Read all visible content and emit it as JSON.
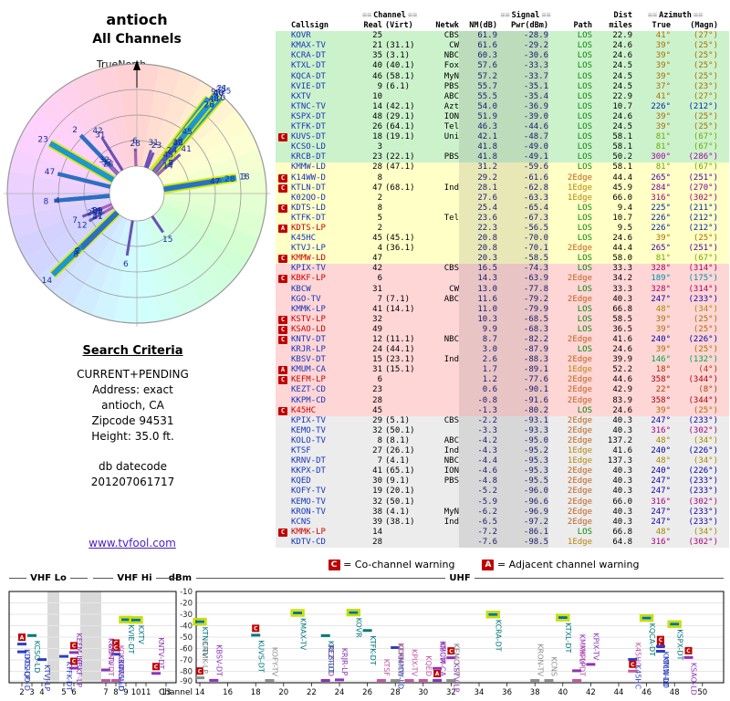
{
  "header": {
    "title": "antioch",
    "subtitle": "All Channels"
  },
  "radar": {
    "north_label": "TrueNorth"
  },
  "criteria": {
    "heading": "Search Criteria",
    "lines": [
      "CURRENT+PENDING",
      "Address: exact",
      "antioch, CA",
      "Zipcode 94531",
      "Height: 35.0 ft."
    ],
    "db_label": "db datecode",
    "db_datecode": "201207061717"
  },
  "footer_link": "www.tvfool.com",
  "table": {
    "groups": {
      "channel": "Channel",
      "signal": "Signal",
      "dist": "Dist",
      "azimuth": "Azimuth"
    },
    "cols": [
      "Callsign",
      "Real",
      "(Virt)",
      "Netwk",
      "NM(dB)",
      "Pwr(dBm)",
      "Path",
      "miles",
      "True",
      "(Magn)"
    ]
  },
  "legend": {
    "c_label": "C",
    "c_text": "= Co-channel warning",
    "a_label": "A",
    "a_text": "= Adjacent channel warning"
  },
  "chart": {
    "ylabel": "dBm",
    "xlabel": "Channel",
    "bands": [
      "VHF Lo",
      "VHF Hi",
      "UHF"
    ],
    "yticks": [
      -10,
      -20,
      -30,
      -40,
      -50,
      -60,
      -70,
      -80,
      -90
    ],
    "vhf_ticks": [
      2,
      3,
      4,
      5,
      6,
      7,
      8,
      9,
      10,
      11,
      13
    ],
    "uhf_ticks": [
      14,
      16,
      18,
      20,
      22,
      24,
      26,
      28,
      30,
      32,
      34,
      36,
      38,
      40,
      42,
      44,
      46,
      48,
      50
    ]
  },
  "chart_data": {
    "type": "table",
    "title": "antioch - All Channels",
    "columns": [
      "Callsign",
      "Real",
      "(Virt)",
      "Netwk",
      "NM(dB)",
      "Pwr(dBm)",
      "Path",
      "miles",
      "True",
      "(Magn)"
    ],
    "stations": [
      {
        "cs": "KOVR",
        "re": "25",
        "vi": "",
        "ne": "CBS",
        "nm": 61.9,
        "pw": -28.9,
        "pa": "LOS",
        "mi": "22.9",
        "at": 41,
        "am": 27,
        "fl": "",
        "wr": false
      },
      {
        "cs": "KMAX-TV",
        "re": "21",
        "vi": "(31.1)",
        "ne": "CW",
        "nm": 61.6,
        "pw": -29.2,
        "pa": "LOS",
        "mi": "24.6",
        "at": 39,
        "am": 25,
        "fl": "",
        "wr": false
      },
      {
        "cs": "KCRA-DT",
        "re": "35",
        "vi": "(3.1)",
        "ne": "NBC",
        "nm": 60.3,
        "pw": -30.6,
        "pa": "LOS",
        "mi": "24.6",
        "at": 39,
        "am": 25,
        "fl": "",
        "wr": false
      },
      {
        "cs": "KTXL-DT",
        "re": "40",
        "vi": "(40.1)",
        "ne": "Fox",
        "nm": 57.6,
        "pw": -33.3,
        "pa": "LOS",
        "mi": "24.5",
        "at": 39,
        "am": 25,
        "fl": "",
        "wr": false
      },
      {
        "cs": "KQCA-DT",
        "re": "46",
        "vi": "(58.1)",
        "ne": "MyN",
        "nm": 57.2,
        "pw": -33.7,
        "pa": "LOS",
        "mi": "24.5",
        "at": 39,
        "am": 25,
        "fl": "",
        "wr": false
      },
      {
        "cs": "KVIE-DT",
        "re": "9",
        "vi": "(6.1)",
        "ne": "PBS",
        "nm": 55.7,
        "pw": -35.1,
        "pa": "LOS",
        "mi": "24.5",
        "at": 37,
        "am": 23,
        "fl": "",
        "wr": false
      },
      {
        "cs": "KXTV",
        "re": "10",
        "vi": "",
        "ne": "ABC",
        "nm": 55.5,
        "pw": -35.4,
        "pa": "LOS",
        "mi": "22.9",
        "at": 41,
        "am": 27,
        "fl": "",
        "wr": false
      },
      {
        "cs": "KTNC-TV",
        "re": "14",
        "vi": "(42.1)",
        "ne": "Azt",
        "nm": 54.0,
        "pw": -36.9,
        "pa": "LOS",
        "mi": "10.7",
        "at": 226,
        "am": 212,
        "fl": "",
        "wr": false
      },
      {
        "cs": "KSPX-DT",
        "re": "48",
        "vi": "(29.1)",
        "ne": "ION",
        "nm": 51.9,
        "pw": -39.0,
        "pa": "LOS",
        "mi": "24.6",
        "at": 39,
        "am": 25,
        "fl": "",
        "wr": false
      },
      {
        "cs": "KTFK-DT",
        "re": "26",
        "vi": "(64.1)",
        "ne": "Tel",
        "nm": 46.3,
        "pw": -44.6,
        "pa": "LOS",
        "mi": "24.5",
        "at": 39,
        "am": 25,
        "fl": "",
        "wr": false
      },
      {
        "cs": "KUVS-DT",
        "re": "18",
        "vi": "(19.1)",
        "ne": "Uni",
        "nm": 42.1,
        "pw": -48.7,
        "pa": "LOS",
        "mi": "58.1",
        "at": 81,
        "am": 67,
        "fl": "C",
        "wr": false
      },
      {
        "cs": "KCSO-LD",
        "re": "3",
        "vi": "",
        "ne": "",
        "nm": 41.8,
        "pw": -49.0,
        "pa": "LOS",
        "mi": "58.1",
        "at": 81,
        "am": 67,
        "fl": "",
        "wr": false
      },
      {
        "cs": "KRCB-DT",
        "re": "23",
        "vi": "(22.1)",
        "ne": "PBS",
        "nm": 41.8,
        "pw": -49.1,
        "pa": "LOS",
        "mi": "50.2",
        "at": 300,
        "am": 286,
        "fl": "",
        "wr": false
      },
      {
        "cs": "KMMW-LD",
        "re": "28",
        "vi": "(47.1)",
        "ne": "",
        "nm": 31.2,
        "pw": -59.6,
        "pa": "LOS",
        "mi": "58.1",
        "at": 81,
        "am": 67,
        "fl": "",
        "wr": false
      },
      {
        "cs": "K14WW-D",
        "re": "8",
        "vi": "",
        "ne": "",
        "nm": 29.2,
        "pw": -61.6,
        "pa": "2Edge",
        "mi": "44.4",
        "at": 265,
        "am": 251,
        "fl": "C",
        "wr": false
      },
      {
        "cs": "KTLN-DT",
        "re": "47",
        "vi": "(68.1)",
        "ne": "Ind",
        "nm": 28.1,
        "pw": -62.8,
        "pa": "1Edge",
        "mi": "45.9",
        "at": 284,
        "am": 270,
        "fl": "C",
        "wr": false
      },
      {
        "cs": "K02QO-D",
        "re": "2",
        "vi": "",
        "ne": "",
        "nm": 27.6,
        "pw": -63.3,
        "pa": "1Edge",
        "mi": "66.0",
        "at": 316,
        "am": 302,
        "fl": "",
        "wr": false
      },
      {
        "cs": "KDTS-LD",
        "re": "8",
        "vi": "",
        "ne": "",
        "nm": 25.4,
        "pw": -65.4,
        "pa": "LOS",
        "mi": "9.4",
        "at": 225,
        "am": 211,
        "fl": "C",
        "wr": false
      },
      {
        "cs": "KTFK-DT",
        "re": "5",
        "vi": "",
        "ne": "Tel",
        "nm": 23.6,
        "pw": -67.3,
        "pa": "LOS",
        "mi": "10.7",
        "at": 226,
        "am": 212,
        "fl": "",
        "wr": false
      },
      {
        "cs": "KDTS-LP",
        "re": "2",
        "vi": "",
        "ne": "",
        "nm": 22.3,
        "pw": -56.5,
        "pa": "LOS",
        "mi": "9.5",
        "at": 226,
        "am": 212,
        "fl": "A",
        "wr": true
      },
      {
        "cs": "K45HC",
        "re": "45",
        "vi": "(45.1)",
        "ne": "",
        "nm": 20.8,
        "pw": -70.0,
        "pa": "LOS",
        "mi": "24.6",
        "at": 39,
        "am": 25,
        "fl": "",
        "wr": false
      },
      {
        "cs": "KTVJ-LP",
        "re": "4",
        "vi": "(36.1)",
        "ne": "",
        "nm": 20.8,
        "pw": -70.1,
        "pa": "2Edge",
        "mi": "44.4",
        "at": 265,
        "am": 251,
        "fl": "",
        "wr": false
      },
      {
        "cs": "KMMW-LD",
        "re": "47",
        "vi": "",
        "ne": "",
        "nm": 20.3,
        "pw": -58.5,
        "pa": "LOS",
        "mi": "58.0",
        "at": 81,
        "am": 67,
        "fl": "C",
        "wr": true
      },
      {
        "cs": "KPIX-TV",
        "re": "42",
        "vi": "",
        "ne": "CBS",
        "nm": 16.5,
        "pw": -74.3,
        "pa": "LOS",
        "mi": "33.3",
        "at": 328,
        "am": 314,
        "fl": "",
        "wr": false
      },
      {
        "cs": "KBKF-LP",
        "re": "6",
        "vi": "",
        "ne": "",
        "nm": 14.3,
        "pw": -63.9,
        "pa": "2Edge",
        "mi": "34.2",
        "at": 189,
        "am": 175,
        "fl": "C",
        "wr": true
      },
      {
        "cs": "KBCW",
        "re": "31",
        "vi": "",
        "ne": "CW",
        "nm": 13.0,
        "pw": -77.8,
        "pa": "LOS",
        "mi": "33.3",
        "at": 328,
        "am": 314,
        "fl": "",
        "wr": false
      },
      {
        "cs": "KGO-TV",
        "re": "7",
        "vi": "(7.1)",
        "ne": "ABC",
        "nm": 11.6,
        "pw": -79.2,
        "pa": "2Edge",
        "mi": "40.3",
        "at": 247,
        "am": 233,
        "fl": "",
        "wr": false
      },
      {
        "cs": "KMMK-LP",
        "re": "41",
        "vi": "(14.1)",
        "ne": "",
        "nm": 11.0,
        "pw": -79.9,
        "pa": "LOS",
        "mi": "66.8",
        "at": 48,
        "am": 34,
        "fl": "",
        "wr": false
      },
      {
        "cs": "KSTV-LP",
        "re": "32",
        "vi": "",
        "ne": "",
        "nm": 10.3,
        "pw": -68.5,
        "pa": "LOS",
        "mi": "58.5",
        "at": 39,
        "am": 25,
        "fl": "C",
        "wr": true
      },
      {
        "cs": "KSAO-LD",
        "re": "49",
        "vi": "",
        "ne": "",
        "nm": 9.9,
        "pw": -68.3,
        "pa": "LOS",
        "mi": "36.5",
        "at": 39,
        "am": 25,
        "fl": "C",
        "wr": true
      },
      {
        "cs": "KNTV-DT",
        "re": "12",
        "vi": "(11.1)",
        "ne": "NBC",
        "nm": 8.7,
        "pw": -82.2,
        "pa": "2Edge",
        "mi": "41.6",
        "at": 240,
        "am": 226,
        "fl": "C",
        "wr": false
      },
      {
        "cs": "KRJR-LP",
        "re": "24",
        "vi": "(44.1)",
        "ne": "",
        "nm": 3.0,
        "pw": -87.9,
        "pa": "LOS",
        "mi": "24.6",
        "at": 39,
        "am": 25,
        "fl": "",
        "wr": false
      },
      {
        "cs": "KBSV-DT",
        "re": "15",
        "vi": "(23.1)",
        "ne": "Ind",
        "nm": 2.6,
        "pw": -88.3,
        "pa": "2Edge",
        "mi": "39.9",
        "at": 146,
        "am": 132,
        "fl": "",
        "wr": false
      },
      {
        "cs": "KMUM-CA",
        "re": "31",
        "vi": "(15.1)",
        "ne": "",
        "nm": 1.7,
        "pw": -89.1,
        "pa": "1Edge",
        "mi": "52.2",
        "at": 18,
        "am": 4,
        "fl": "A",
        "wr": false
      },
      {
        "cs": "KEFM-LP",
        "re": "6",
        "vi": "",
        "ne": "",
        "nm": 1.2,
        "pw": -77.6,
        "pa": "2Edge",
        "mi": "44.6",
        "at": 358,
        "am": 344,
        "fl": "C",
        "wr": true
      },
      {
        "cs": "KEZT-CD",
        "re": "23",
        "vi": "",
        "ne": "",
        "nm": 0.6,
        "pw": -90.1,
        "pa": "2Edge",
        "mi": "42.9",
        "at": 22,
        "am": 8,
        "fl": "",
        "wr": false
      },
      {
        "cs": "KKPM-CD",
        "re": "28",
        "vi": "",
        "ne": "",
        "nm": -0.8,
        "pw": -91.6,
        "pa": "2Edge",
        "mi": "83.9",
        "at": 358,
        "am": 344,
        "fl": "",
        "wr": false
      },
      {
        "cs": "K45HC",
        "re": "45",
        "vi": "",
        "ne": "",
        "nm": -1.3,
        "pw": -80.2,
        "pa": "LOS",
        "mi": "24.6",
        "at": 39,
        "am": 25,
        "fl": "C",
        "wr": true
      },
      {
        "cs": "KPIX-TV",
        "re": "29",
        "vi": "(5.1)",
        "ne": "CBS",
        "nm": -2.2,
        "pw": -93.1,
        "pa": "2Edge",
        "mi": "40.3",
        "at": 247,
        "am": 233,
        "fl": "",
        "wr": false
      },
      {
        "cs": "KEMO-TV",
        "re": "32",
        "vi": "(50.1)",
        "ne": "",
        "nm": -3.3,
        "pw": -93.3,
        "pa": "2Edge",
        "mi": "40.3",
        "at": 316,
        "am": 302,
        "fl": "",
        "wr": false
      },
      {
        "cs": "KOLO-TV",
        "re": "8",
        "vi": "(8.1)",
        "ne": "ABC",
        "nm": -4.2,
        "pw": -95.0,
        "pa": "2Edge",
        "mi": "137.2",
        "at": 48,
        "am": 34,
        "fl": "",
        "wr": false
      },
      {
        "cs": "KTSF",
        "re": "27",
        "vi": "(26.1)",
        "ne": "Ind",
        "nm": -4.3,
        "pw": -95.2,
        "pa": "1Edge",
        "mi": "41.6",
        "at": 240,
        "am": 226,
        "fl": "",
        "wr": false
      },
      {
        "cs": "KRNV-DT",
        "re": "7",
        "vi": "(4.1)",
        "ne": "NBC",
        "nm": -4.4,
        "pw": -95.3,
        "pa": "1Edge",
        "mi": "137.3",
        "at": 48,
        "am": 34,
        "fl": "",
        "wr": false
      },
      {
        "cs": "KKPX-DT",
        "re": "41",
        "vi": "(65.1)",
        "ne": "ION",
        "nm": -4.6,
        "pw": -95.3,
        "pa": "2Edge",
        "mi": "40.3",
        "at": 240,
        "am": 226,
        "fl": "",
        "wr": false
      },
      {
        "cs": "KQED",
        "re": "30",
        "vi": "(9.1)",
        "ne": "PBS",
        "nm": -4.8,
        "pw": -95.5,
        "pa": "2Edge",
        "mi": "40.3",
        "at": 247,
        "am": 233,
        "fl": "",
        "wr": false
      },
      {
        "cs": "KOFY-TV",
        "re": "19",
        "vi": "(20.1)",
        "ne": "",
        "nm": -5.2,
        "pw": -96.0,
        "pa": "2Edge",
        "mi": "40.3",
        "at": 247,
        "am": 233,
        "fl": "",
        "wr": false
      },
      {
        "cs": "KEMO-TV",
        "re": "32",
        "vi": "(50.1)",
        "ne": "",
        "nm": -5.9,
        "pw": -96.6,
        "pa": "2Edge",
        "mi": "66.0",
        "at": 316,
        "am": 302,
        "fl": "",
        "wr": false
      },
      {
        "cs": "KRON-TV",
        "re": "38",
        "vi": "(4.1)",
        "ne": "MyN",
        "nm": -6.2,
        "pw": -96.9,
        "pa": "2Edge",
        "mi": "40.3",
        "at": 247,
        "am": 233,
        "fl": "",
        "wr": false
      },
      {
        "cs": "KCNS",
        "re": "39",
        "vi": "(38.1)",
        "ne": "Ind",
        "nm": -6.5,
        "pw": -97.2,
        "pa": "2Edge",
        "mi": "40.3",
        "at": 247,
        "am": 233,
        "fl": "",
        "wr": false
      },
      {
        "cs": "KMMK-LP",
        "re": "14",
        "vi": "",
        "ne": "",
        "nm": -7.2,
        "pw": -86.1,
        "pa": "LOS",
        "mi": "66.8",
        "at": 48,
        "am": 34,
        "fl": "C",
        "wr": true
      },
      {
        "cs": "KDTV-CD",
        "re": "28",
        "vi": "",
        "ne": "",
        "nm": -7.6,
        "pw": -98.5,
        "pa": "1Edge",
        "mi": "64.8",
        "at": 316,
        "am": 302,
        "fl": "",
        "wr": false
      }
    ],
    "radar": {
      "type": "polar",
      "angle_field": "az_true_degrees",
      "length_field": "nm_db",
      "label_field": "real_channel"
    },
    "signal_chart": {
      "type": "bar",
      "ylabel": "dBm",
      "ylim": [
        -90,
        -10
      ],
      "xlabel": "Channel",
      "bands": [
        "VHF Lo",
        "VHF Hi",
        "UHF"
      ],
      "x_field": "real_channel",
      "y_field": "pwr_dbm"
    }
  }
}
